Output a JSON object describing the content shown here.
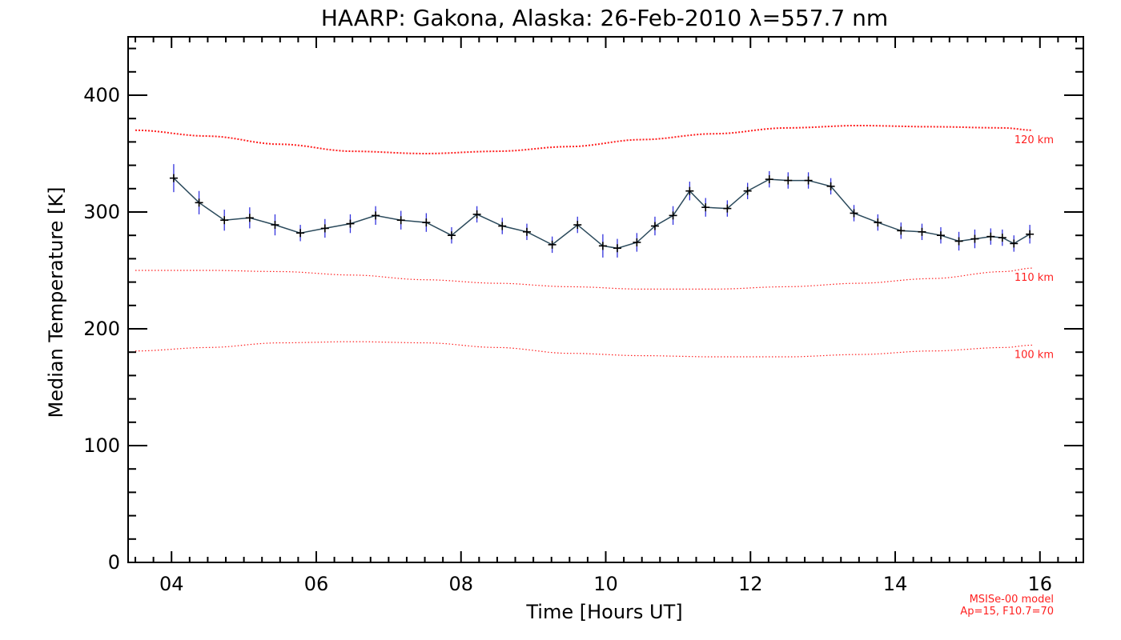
{
  "chart_data": {
    "type": "line",
    "title": "HAARP: Gakona,  Alaska: 26-Feb-2010 λ=557.7 nm",
    "xlabel": "Time [Hours UT]",
    "ylabel": "Median Temperature [K]",
    "xlim": [
      3.4,
      16.6
    ],
    "ylim": [
      0,
      450
    ],
    "x_tick_labels": [
      {
        "value": 4,
        "label": "04"
      },
      {
        "value": 6,
        "label": "06"
      },
      {
        "value": 8,
        "label": "08"
      },
      {
        "value": 10,
        "label": "10"
      },
      {
        "value": 12,
        "label": "12"
      },
      {
        "value": 14,
        "label": "14"
      },
      {
        "value": 16,
        "label": "16"
      }
    ],
    "y_tick_labels": [
      {
        "value": 0,
        "label": "0"
      },
      {
        "value": 100,
        "label": "100"
      },
      {
        "value": 200,
        "label": "200"
      },
      {
        "value": 300,
        "label": "300"
      },
      {
        "value": 400,
        "label": "400"
      }
    ],
    "grid": false,
    "legend": "none",
    "colors": {
      "measured_line": "#2b4a5c",
      "error_bar": "#3333dd",
      "marker": "#000000",
      "model": "#ff2020"
    },
    "series": [
      {
        "x": [
          4.03,
          4.38,
          4.73,
          5.08,
          5.43,
          5.78,
          6.12,
          6.47,
          6.82,
          7.17,
          7.52,
          7.87,
          8.22,
          8.57,
          8.91,
          9.26,
          9.61,
          9.96,
          10.16,
          10.43,
          10.68,
          10.93,
          11.16,
          11.38,
          11.68,
          11.96,
          12.26,
          12.52,
          12.8,
          13.11,
          13.43,
          13.76,
          14.08,
          14.37,
          14.63,
          14.88,
          15.1,
          15.32,
          15.48,
          15.64,
          15.86
        ],
        "y": [
          329,
          308,
          293,
          295,
          289,
          282,
          286,
          290,
          297,
          293,
          291,
          280,
          298,
          288,
          283,
          272,
          289,
          271,
          269,
          274,
          288,
          297,
          318,
          304,
          303,
          318,
          328,
          327,
          327,
          322,
          299,
          291,
          284,
          283,
          280,
          275,
          277,
          279,
          278,
          273,
          281
        ],
        "yerr": [
          12,
          10,
          9,
          9,
          9,
          7,
          8,
          8,
          8,
          8,
          8,
          7,
          7,
          7,
          7,
          7,
          7,
          10,
          8,
          8,
          8,
          8,
          8,
          8,
          7,
          7,
          7,
          7,
          7,
          7,
          7,
          7,
          7,
          7,
          7,
          8,
          8,
          7,
          7,
          7,
          8
        ]
      }
    ],
    "model_curves": [
      {
        "name": "120 km",
        "x": [
          3.5,
          4.5,
          5.5,
          6.5,
          7.5,
          8.5,
          9.5,
          10.5,
          11.5,
          12.5,
          13.5,
          14.5,
          15.5,
          15.9
        ],
        "y": [
          370,
          365,
          358,
          352,
          350,
          352,
          356,
          362,
          367,
          372,
          374,
          373,
          372,
          370
        ]
      },
      {
        "name": "110 km",
        "x": [
          3.5,
          4.5,
          5.5,
          6.5,
          7.5,
          8.5,
          9.5,
          10.5,
          11.5,
          12.5,
          13.5,
          14.5,
          15.5,
          15.9
        ],
        "y": [
          250,
          250,
          249,
          246,
          242,
          239,
          236,
          234,
          234,
          236,
          239,
          243,
          249,
          252
        ]
      },
      {
        "name": "100 km",
        "x": [
          3.5,
          4.5,
          5.5,
          6.5,
          7.5,
          8.5,
          9.5,
          10.5,
          11.5,
          12.5,
          13.5,
          14.5,
          15.5,
          15.9
        ],
        "y": [
          181,
          184,
          188,
          189,
          188,
          184,
          179,
          177,
          176,
          176,
          178,
          181,
          184,
          186
        ]
      }
    ],
    "model_note": [
      "MSISe-00 model",
      "Ap=15, F10.7=70"
    ]
  }
}
